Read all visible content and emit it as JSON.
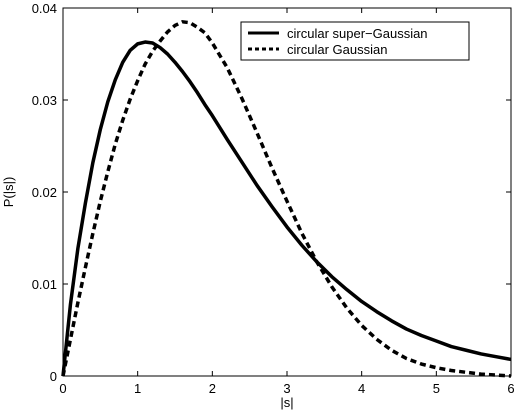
{
  "chart_data": {
    "type": "line",
    "title": "",
    "xlabel": "|s|",
    "ylabel": "P(|s|)",
    "xlim": [
      0,
      6
    ],
    "ylim": [
      0,
      0.04
    ],
    "grid": false,
    "legend_placement": "top-right",
    "x_ticks": [
      0,
      1,
      2,
      3,
      4,
      5,
      6
    ],
    "x_tick_labels": [
      "0",
      "1",
      "2",
      "3",
      "4",
      "5",
      "6"
    ],
    "y_ticks": [
      0,
      0.01,
      0.02,
      0.03,
      0.04
    ],
    "y_tick_labels": [
      "0",
      "0.01",
      "0.02",
      "0.03",
      "0.04"
    ],
    "series": [
      {
        "name": "circular super−Gaussian",
        "line_style": "solid",
        "color": "#000000",
        "x": [
          0,
          0.1,
          0.2,
          0.3,
          0.4,
          0.5,
          0.6,
          0.7,
          0.8,
          0.9,
          1.0,
          1.1,
          1.2,
          1.3,
          1.4,
          1.5,
          1.6,
          1.7,
          1.8,
          1.9,
          2.0,
          2.2,
          2.4,
          2.6,
          2.8,
          3.0,
          3.2,
          3.4,
          3.6,
          3.8,
          4.0,
          4.2,
          4.4,
          4.6,
          4.8,
          5.0,
          5.2,
          5.4,
          5.6,
          5.8,
          6.0
        ],
        "y": [
          0,
          0.0078,
          0.0139,
          0.0188,
          0.0232,
          0.0268,
          0.0298,
          0.0322,
          0.0341,
          0.0354,
          0.0361,
          0.0363,
          0.0362,
          0.0357,
          0.035,
          0.0341,
          0.0331,
          0.032,
          0.0308,
          0.0295,
          0.0283,
          0.0257,
          0.0232,
          0.0207,
          0.0184,
          0.0162,
          0.0142,
          0.0124,
          0.0108,
          0.0094,
          0.0081,
          0.007,
          0.006,
          0.0051,
          0.0044,
          0.0038,
          0.0032,
          0.0028,
          0.0024,
          0.0021,
          0.0018
        ]
      },
      {
        "name": "circular Gaussian",
        "line_style": "dashed",
        "color": "#000000",
        "x": [
          0,
          0.1,
          0.2,
          0.3,
          0.4,
          0.5,
          0.6,
          0.7,
          0.8,
          0.9,
          1.0,
          1.1,
          1.2,
          1.3,
          1.4,
          1.5,
          1.6,
          1.7,
          1.8,
          1.9,
          2.0,
          2.2,
          2.4,
          2.6,
          2.8,
          3.0,
          3.2,
          3.4,
          3.6,
          3.8,
          4.0,
          4.2,
          4.4,
          4.6,
          4.8,
          5.0,
          5.2,
          5.4,
          5.6,
          5.8,
          6.0
        ],
        "y": [
          0,
          0.004,
          0.008,
          0.0118,
          0.0155,
          0.019,
          0.0222,
          0.0252,
          0.0278,
          0.0301,
          0.0321,
          0.0339,
          0.0353,
          0.0364,
          0.0374,
          0.0381,
          0.0385,
          0.0384,
          0.0379,
          0.0373,
          0.0362,
          0.0335,
          0.0301,
          0.0264,
          0.0226,
          0.019,
          0.0155,
          0.0124,
          0.0097,
          0.0074,
          0.0055,
          0.004,
          0.0028,
          0.0019,
          0.0013,
          0.0009,
          0.0006,
          0.0004,
          0.0002,
          0.0001,
          0.0
        ]
      }
    ]
  },
  "legend": {
    "items": [
      {
        "label": "circular super−Gaussian",
        "line_style": "solid"
      },
      {
        "label": "circular Gaussian",
        "line_style": "dashed"
      }
    ]
  }
}
